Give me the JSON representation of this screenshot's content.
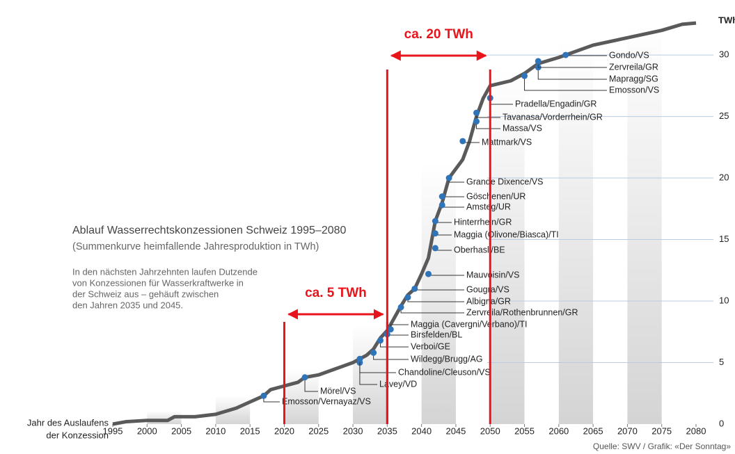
{
  "chart_data": {
    "type": "line",
    "title": "Ablauf Wasserrechtskonzessionen Schweiz 1995–2080",
    "subtitle": "(Summenkurve heimfallende Jahresproduktion in TWh)",
    "description": [
      "In den nächsten Jahrzehnten laufen Dutzende",
      "von Konzessionen für Wasserkraftwerke in",
      "der Schweiz aus – gehäuft zwischen",
      "den Jahren 2035 und 2045."
    ],
    "x_axis_label": [
      "Jahr des Auslaufens",
      "der Konzession"
    ],
    "y_unit": "TWh",
    "source": "Quelle: SWV / Grafik: «Der Sonntag»",
    "color": "#5a5a5a",
    "point_color": "#2f73b8",
    "x": [
      1995,
      1997,
      2000,
      2003,
      2004,
      2007,
      2010,
      2013,
      2015,
      2017,
      2018,
      2020,
      2022,
      2023,
      2025,
      2027,
      2029,
      2030,
      2031,
      2032,
      2033,
      2034,
      2035,
      2036,
      2037,
      2038,
      2039,
      2040,
      2041,
      2042,
      2043,
      2044,
      2046,
      2047,
      2048,
      2049,
      2050,
      2053,
      2055,
      2057,
      2060,
      2062,
      2065,
      2070,
      2075,
      2078,
      2080
    ],
    "values": [
      0,
      0.2,
      0.3,
      0.3,
      0.6,
      0.6,
      0.8,
      1.3,
      1.8,
      2.3,
      2.8,
      3.1,
      3.4,
      3.8,
      4.0,
      4.4,
      4.8,
      5.0,
      5.3,
      5.6,
      6.1,
      7.0,
      7.6,
      8.6,
      9.6,
      10.5,
      11.0,
      12.2,
      13.5,
      16.5,
      18.0,
      20.0,
      21.5,
      23.0,
      25.0,
      26.5,
      27.5,
      27.9,
      28.5,
      29.3,
      29.8,
      30.2,
      30.8,
      31.4,
      32.0,
      32.5,
      32.6
    ],
    "plants": [
      {
        "name": "Emosson/Vernayaz/VS",
        "year": 2017,
        "value": 2.3
      },
      {
        "name": "Mörel/VS",
        "year": 2023,
        "value": 3.8
      },
      {
        "name": "Lavey/VD",
        "year": 2031,
        "value": 5.0
      },
      {
        "name": "Chandoline/Cleuson/VS",
        "year": 2031,
        "value": 5.3
      },
      {
        "name": "Wildegg/Brugg/AG",
        "year": 2033,
        "value": 5.8
      },
      {
        "name": "Verboi/GE",
        "year": 2034,
        "value": 6.8
      },
      {
        "name": "Birsfelden/BL",
        "year": 2035,
        "value": 7.3
      },
      {
        "name": "Maggia (Cavergni/Verbano)/TI",
        "year": 2035.5,
        "value": 7.7
      },
      {
        "name": "Zervreila/Rothenbrunnen/GR",
        "year": 2037,
        "value": 9.5
      },
      {
        "name": "Albigna/GR",
        "year": 2038,
        "value": 10.3
      },
      {
        "name": "Gougra/VS",
        "year": 2039,
        "value": 11.0
      },
      {
        "name": "Mauvoisin/VS",
        "year": 2041,
        "value": 12.2
      },
      {
        "name": "Oberhasli/BE",
        "year": 2042,
        "value": 14.3
      },
      {
        "name": "Maggia (Olivone/Biasca)/TI",
        "year": 2042,
        "value": 15.5
      },
      {
        "name": "Hinterrhein/GR",
        "year": 2042,
        "value": 16.5
      },
      {
        "name": "Amsteg/UR",
        "year": 2043,
        "value": 17.8
      },
      {
        "name": "Göschenen/UR",
        "year": 2043,
        "value": 18.5
      },
      {
        "name": "Grande Dixence/VS",
        "year": 2044,
        "value": 20.0
      },
      {
        "name": "Mattmark/VS",
        "year": 2046,
        "value": 23.0
      },
      {
        "name": "Massa/VS",
        "year": 2048,
        "value": 24.6
      },
      {
        "name": "Tavanasa/Vorderrhein/GR",
        "year": 2048,
        "value": 25.3
      },
      {
        "name": "Pradella/Engadin/GR",
        "year": 2050,
        "value": 26.5
      },
      {
        "name": "Emosson/VS",
        "year": 2055,
        "value": 28.3
      },
      {
        "name": "Mapragg/SG",
        "year": 2057,
        "value": 29.0
      },
      {
        "name": "Zervreila/GR",
        "year": 2057,
        "value": 29.5
      },
      {
        "name": "Gondo/VS",
        "year": 2061,
        "value": 30.0
      }
    ],
    "annotations": [
      {
        "text": "ca. 5 TWh",
        "from": 2020,
        "to": 2035
      },
      {
        "text": "ca. 20 TWh",
        "from": 2035,
        "to": 2050
      }
    ],
    "annotation_color": "#e8141b",
    "xlim": [
      1995,
      2080
    ],
    "xticks": [
      1995,
      2000,
      2005,
      2010,
      2015,
      2020,
      2025,
      2030,
      2035,
      2040,
      2045,
      2050,
      2055,
      2060,
      2065,
      2070,
      2075,
      2080
    ],
    "ylim": [
      0,
      33
    ],
    "yticks": [
      0,
      5,
      10,
      15,
      20,
      25,
      30
    ]
  }
}
